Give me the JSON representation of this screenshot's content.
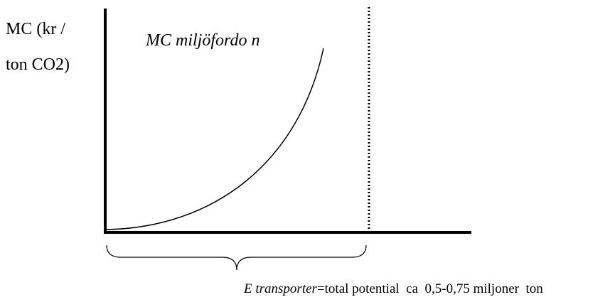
{
  "y_axis_label": {
    "line1": "MC (kr /",
    "line2": "ton CO2)"
  },
  "curve_label": "MC miljöfordo n",
  "caption": {
    "italic": "E transporter",
    "rest": "=total potential  ca  0,5-0,75 miljoner  ton"
  }
}
